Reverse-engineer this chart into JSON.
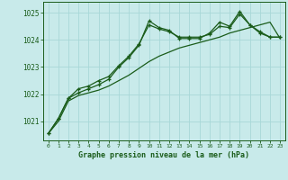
{
  "title": "Graphe pression niveau de la mer (hPa)",
  "bg_color": "#c8eaea",
  "grid_color": "#a8d8d8",
  "line_color": "#1a5c1a",
  "x_labels": [
    "0",
    "1",
    "2",
    "3",
    "4",
    "5",
    "6",
    "7",
    "8",
    "9",
    "10",
    "11",
    "12",
    "13",
    "14",
    "15",
    "16",
    "17",
    "18",
    "19",
    "20",
    "21",
    "22",
    "23"
  ],
  "yticks": [
    1021,
    1022,
    1023,
    1024,
    1025
  ],
  "ylim": [
    1020.3,
    1025.4
  ],
  "series1_marked": [
    1020.55,
    1021.1,
    1021.85,
    1022.05,
    1022.2,
    1022.35,
    1022.55,
    1023.0,
    1023.35,
    1023.8,
    1024.7,
    1024.45,
    1024.35,
    1024.05,
    1024.05,
    1024.05,
    1024.25,
    1024.65,
    1024.5,
    1025.05,
    1024.55,
    1024.3,
    1024.1,
    1024.1
  ],
  "series2_marked": [
    1020.55,
    1021.1,
    1021.85,
    1022.2,
    1022.3,
    1022.5,
    1022.65,
    1023.05,
    1023.4,
    1023.85,
    1024.55,
    1024.4,
    1024.3,
    1024.1,
    1024.1,
    1024.1,
    1024.2,
    1024.5,
    1024.45,
    1024.95,
    1024.55,
    1024.25,
    1024.1,
    1024.1
  ],
  "series3_plain": [
    1020.55,
    1021.0,
    1021.75,
    1021.95,
    1022.05,
    1022.15,
    1022.3,
    1022.5,
    1022.7,
    1022.95,
    1023.2,
    1023.4,
    1023.55,
    1023.7,
    1023.8,
    1023.9,
    1024.0,
    1024.1,
    1024.25,
    1024.35,
    1024.45,
    1024.55,
    1024.65,
    1024.05
  ]
}
